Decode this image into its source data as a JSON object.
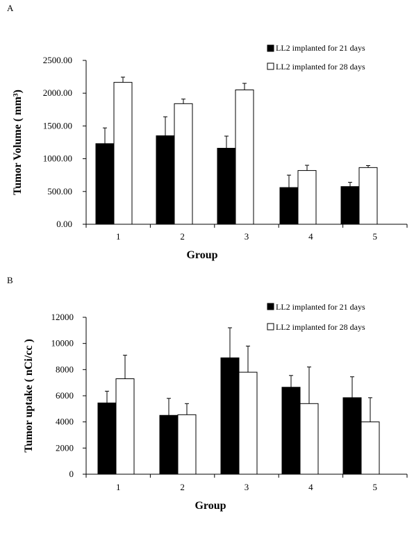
{
  "chart_data": [
    {
      "panel": "A",
      "type": "bar",
      "xlabel": "Group",
      "ylabel": "Tumor Volume ( mm³)",
      "categories": [
        "1",
        "2",
        "3",
        "4",
        "5"
      ],
      "ylim": [
        0,
        2500
      ],
      "yticks": [
        "0.00",
        "500.00",
        "1000.00",
        "1500.00",
        "2000.00",
        "2500.00"
      ],
      "legend_position": "top-right",
      "series": [
        {
          "name": "LL2 implanted for 21 days",
          "color": "#000000",
          "values": [
            1230,
            1350,
            1160,
            560,
            575
          ],
          "errors": [
            240,
            290,
            185,
            190,
            65
          ]
        },
        {
          "name": "LL2 implanted for 28 days",
          "color": "#ffffff",
          "values": [
            2165,
            1840,
            2050,
            820,
            865
          ],
          "errors": [
            80,
            70,
            100,
            80,
            30
          ]
        }
      ]
    },
    {
      "panel": "B",
      "type": "bar",
      "xlabel": "Group",
      "ylabel": "Tumor uptake ( nCi/cc )",
      "categories": [
        "1",
        "2",
        "3",
        "4",
        "5"
      ],
      "ylim": [
        0,
        12000
      ],
      "yticks": [
        "0",
        "2000",
        "4000",
        "6000",
        "8000",
        "10000",
        "12000"
      ],
      "legend_position": "top-right",
      "series": [
        {
          "name": "LL2 implanted for 21 days",
          "color": "#000000",
          "values": [
            5450,
            4500,
            8900,
            6650,
            5850
          ],
          "errors": [
            900,
            1300,
            2300,
            900,
            1600
          ]
        },
        {
          "name": "LL2 implanted for 28 days",
          "color": "#ffffff",
          "values": [
            7300,
            4550,
            7800,
            5400,
            4000
          ],
          "errors": [
            1800,
            850,
            2000,
            2800,
            1850
          ]
        }
      ]
    }
  ]
}
